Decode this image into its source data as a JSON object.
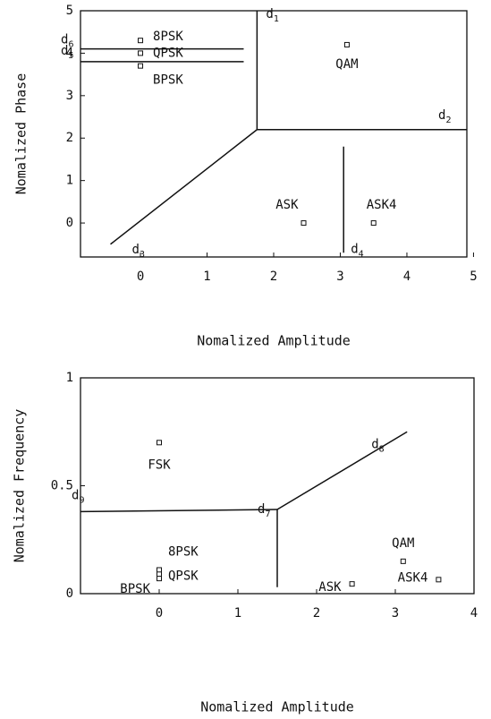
{
  "chart_data": [
    {
      "type": "scatter",
      "xlabel": "Nomalized Amplitude",
      "ylabel": "Nomalized Phase",
      "xlim": [
        -0.9,
        4.9
      ],
      "ylim": [
        -0.8,
        5
      ],
      "xticks": [
        0,
        1,
        2,
        3,
        4,
        5
      ],
      "yticks": [
        0,
        1,
        2,
        3,
        4,
        5
      ],
      "color": "#111111",
      "points": [
        {
          "label": "8PSK",
          "x": 0,
          "y": 4.3
        },
        {
          "label": "QPSK",
          "x": 0,
          "y": 4.0
        },
        {
          "label": "BPSK",
          "x": 0,
          "y": 3.7
        },
        {
          "label": "QAM",
          "x": 3.1,
          "y": 4.2
        },
        {
          "label": "ASK",
          "x": 2.45,
          "y": 0
        },
        {
          "label": "ASK4",
          "x": 3.5,
          "y": 0
        }
      ],
      "lines": [
        {
          "name": "d",
          "sub": "1",
          "x": [
            1.75,
            1.75
          ],
          "y": [
            5,
            2.2
          ]
        },
        {
          "name": "d",
          "sub": "2",
          "x": [
            1.75,
            4.9
          ],
          "y": [
            2.2,
            2.2
          ]
        },
        {
          "name": "d",
          "sub": "3",
          "x": [
            -0.45,
            1.75
          ],
          "y": [
            -0.5,
            2.2
          ]
        },
        {
          "name": "d",
          "sub": "4",
          "x": [
            3.05,
            3.05
          ],
          "y": [
            1.8,
            -0.7
          ]
        },
        {
          "name": "d",
          "sub": "5",
          "x": [
            -0.9,
            1.55
          ],
          "y": [
            3.8,
            3.8
          ]
        },
        {
          "name": "d",
          "sub": "6",
          "x": [
            -0.9,
            1.55
          ],
          "y": [
            4.1,
            4.1
          ]
        }
      ]
    },
    {
      "type": "scatter",
      "xlabel": "Nomalized Amplitude",
      "ylabel": "Nomalized Frequency",
      "xlim": [
        -1,
        4
      ],
      "ylim": [
        0,
        1
      ],
      "xticks": [
        0,
        1,
        2,
        3,
        4
      ],
      "yticks": [
        0,
        0.5,
        1
      ],
      "color": "#111111",
      "points": [
        {
          "label": "FSK",
          "x": 0,
          "y": 0.7
        },
        {
          "label": "8PSK",
          "x": 0,
          "y": 0.11
        },
        {
          "label": "QPSK",
          "x": 0,
          "y": 0.09
        },
        {
          "label": "BPSK",
          "x": 0,
          "y": 0.07
        },
        {
          "label": "QAM",
          "x": 3.1,
          "y": 0.15
        },
        {
          "label": "ASK",
          "x": 2.45,
          "y": 0.045
        },
        {
          "label": "ASK4",
          "x": 3.55,
          "y": 0.065
        }
      ],
      "lines": [
        {
          "name": "d",
          "sub": "7",
          "x": [
            1.5,
            1.5
          ],
          "y": [
            0.39,
            0.03
          ]
        },
        {
          "name": "d",
          "sub": "8",
          "x": [
            1.5,
            3.15
          ],
          "y": [
            0.39,
            0.75
          ]
        },
        {
          "name": "d",
          "sub": "9",
          "x": [
            -1,
            1.5
          ],
          "y": [
            0.38,
            0.39
          ]
        }
      ]
    }
  ]
}
